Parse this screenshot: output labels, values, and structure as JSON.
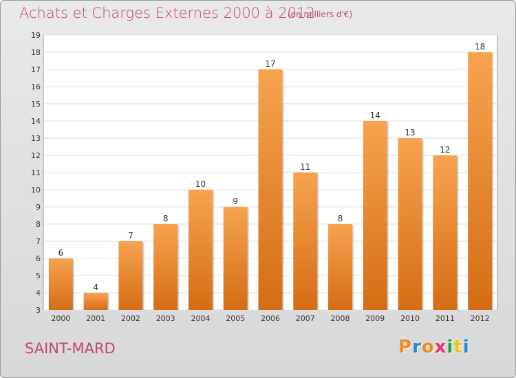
{
  "header": {
    "title": "Achats et Charges Externes 2000 à 2012",
    "subtitle": "(en milliers d'€)"
  },
  "footer": {
    "city": "SAINT-MARD",
    "brand": "Proxiti"
  },
  "colors": {
    "accent": "#c0486d",
    "bar_light": "#f7a34f",
    "bar_dark": "#d46d14"
  },
  "chart_data": {
    "type": "bar",
    "categories": [
      "2000",
      "2001",
      "2002",
      "2003",
      "2004",
      "2005",
      "2006",
      "2007",
      "2008",
      "2009",
      "2010",
      "2011",
      "2012"
    ],
    "values": [
      6,
      4,
      7,
      8,
      10,
      9,
      17,
      11,
      8,
      14,
      13,
      12,
      18
    ],
    "data_labels": [
      "6",
      "4",
      "7",
      "8",
      "10",
      "9",
      "17",
      "11",
      "8",
      "14",
      "13",
      "12",
      "18"
    ],
    "y_ticks": [
      "3",
      "4",
      "5",
      "6",
      "7",
      "8",
      "9",
      "10",
      "11",
      "12",
      "13",
      "14",
      "15",
      "16",
      "17",
      "18",
      "19"
    ],
    "ylim": [
      3,
      19
    ],
    "grid": true,
    "legend": "none"
  }
}
